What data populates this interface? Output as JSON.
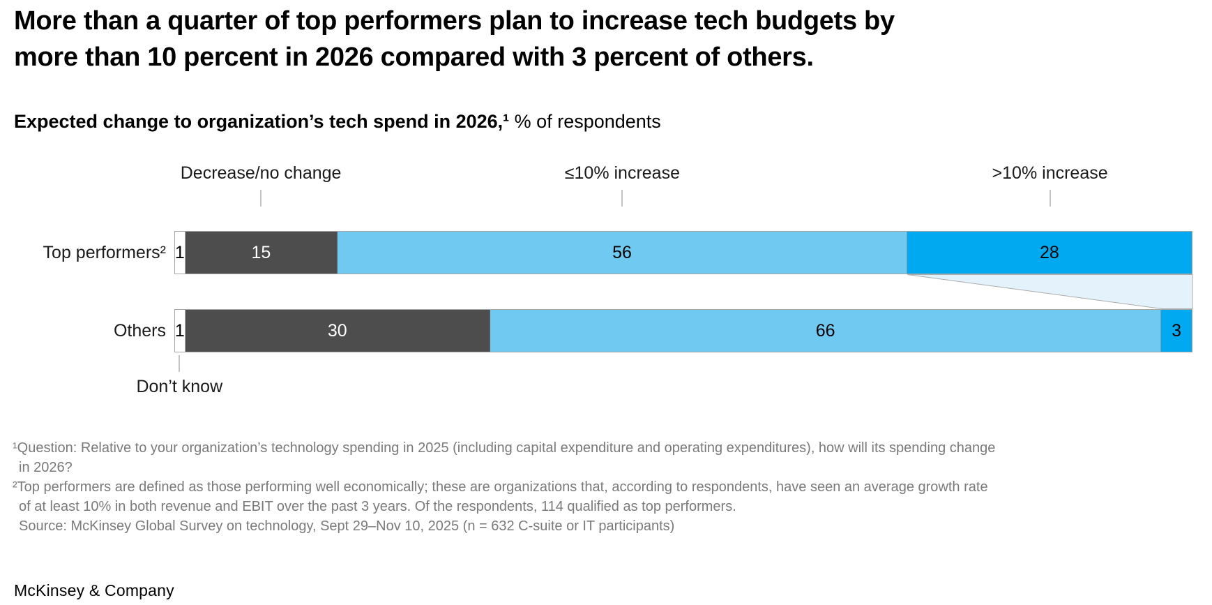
{
  "page": {
    "title_lines": [
      "More than a quarter of top performers plan to increase tech budgets by",
      "more than 10 percent in 2026 compared with 3 percent of others."
    ],
    "subtitle_bold": "Expected change to organization’s tech spend in 2026,¹",
    "subtitle_regular": " % of respondents",
    "brand": "McKinsey & Company"
  },
  "chart_data": {
    "type": "bar",
    "orientation": "horizontal_stacked",
    "unit": "% of respondents",
    "axis_max": 100,
    "categories": [
      "Top performers²",
      "Others"
    ],
    "series": [
      {
        "name": "Don’t know",
        "values": [
          1,
          1
        ],
        "color": "#FFFFFF",
        "text_color": "#000000"
      },
      {
        "name": "Decrease/no change",
        "values": [
          15,
          30
        ],
        "color": "#4D4D4D",
        "text_color": "#FFFFFF"
      },
      {
        "name": "≤10% increase",
        "values": [
          56,
          66
        ],
        "color": "#6FC9F1",
        "text_color": "#000000"
      },
      {
        "name": ">10% increase",
        "values": [
          28,
          3
        ],
        "color": "#00A9F0",
        "text_color": "#000000"
      }
    ],
    "labels_above": [
      "Decrease/no change",
      "≤10% increase",
      ">10% increase"
    ],
    "label_below": "Don’t know",
    "connector": {
      "fill": "#E4F2FB",
      "stroke": "#ABABAB"
    }
  },
  "footnotes": [
    "¹Question: Relative to your organization’s technology spending in 2025 (including capital expenditure and operating expenditures), how will its spending change",
    "in 2026?",
    "²Top performers are defined as those performing well economically; these are organizations that, according to respondents, have seen an average growth rate",
    "of at least 10% in both revenue and EBIT over the past 3 years. Of the respondents, 114 qualified as top performers.",
    "Source: McKinsey Global Survey on technology, Sept 29–Nov 10, 2025 (n = 632 C-suite or IT participants)"
  ]
}
